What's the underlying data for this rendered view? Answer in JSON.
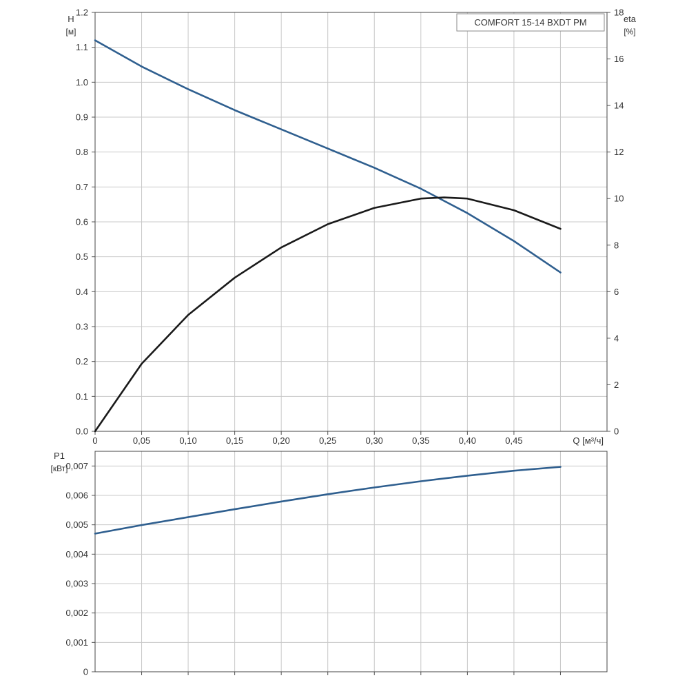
{
  "chart_data": [
    {
      "type": "line",
      "title": "COMFORT 15-14 BXDT PM",
      "xlabel": "Q [м³/ч]",
      "x_unit_label": "Q [м³/ч]",
      "ylabel": "H",
      "ylabel_unit": "[м]",
      "y2label": "eta",
      "y2label_unit": "[%]",
      "xlim": [
        0,
        0.55
      ],
      "ylim": [
        0,
        1.2
      ],
      "y2lim": [
        0,
        18
      ],
      "x_ticks": [
        "0",
        "0,05",
        "0,10",
        "0,15",
        "0,20",
        "0,25",
        "0,30",
        "0,35",
        "0,40",
        "0,45"
      ],
      "y_ticks": [
        "0.0",
        "0.1",
        "0.2",
        "0.3",
        "0.4",
        "0.5",
        "0.6",
        "0.7",
        "0.8",
        "0.9",
        "1.0",
        "1.1",
        "1.2"
      ],
      "y2_ticks": [
        "0",
        "2",
        "4",
        "6",
        "8",
        "10",
        "12",
        "14",
        "16",
        "18"
      ],
      "grid": true,
      "series": [
        {
          "key": "H",
          "axis": "left",
          "color": "#2f5f8f",
          "x": [
            0,
            0.05,
            0.1,
            0.15,
            0.2,
            0.25,
            0.3,
            0.35,
            0.4,
            0.45,
            0.5
          ],
          "y": [
            1.12,
            1.045,
            0.98,
            0.92,
            0.865,
            0.81,
            0.755,
            0.695,
            0.625,
            0.545,
            0.455
          ]
        },
        {
          "key": "eta",
          "axis": "right",
          "color": "#1a1a1a",
          "x": [
            0,
            0.05,
            0.1,
            0.15,
            0.2,
            0.25,
            0.3,
            0.35,
            0.375,
            0.4,
            0.45,
            0.5
          ],
          "y": [
            0,
            2.9,
            5.0,
            6.6,
            7.9,
            8.9,
            9.6,
            10.0,
            10.05,
            10.0,
            9.5,
            8.7
          ]
        }
      ]
    },
    {
      "type": "line",
      "xlim": [
        0,
        0.55
      ],
      "ylabel": "P1",
      "ylabel_unit": "[кВт]",
      "ylim": [
        0,
        0.0075
      ],
      "y_ticks": [
        "0",
        "0,001",
        "0,002",
        "0,003",
        "0,004",
        "0,005",
        "0,006",
        "0,007"
      ],
      "grid": true,
      "series": [
        {
          "key": "P1",
          "axis": "left",
          "color": "#2f5f8f",
          "x": [
            0,
            0.05,
            0.1,
            0.15,
            0.2,
            0.25,
            0.3,
            0.35,
            0.4,
            0.45,
            0.5
          ],
          "y": [
            0.0047,
            0.00499,
            0.00526,
            0.00553,
            0.00579,
            0.00604,
            0.00627,
            0.00648,
            0.00667,
            0.00684,
            0.00697
          ]
        }
      ]
    }
  ]
}
